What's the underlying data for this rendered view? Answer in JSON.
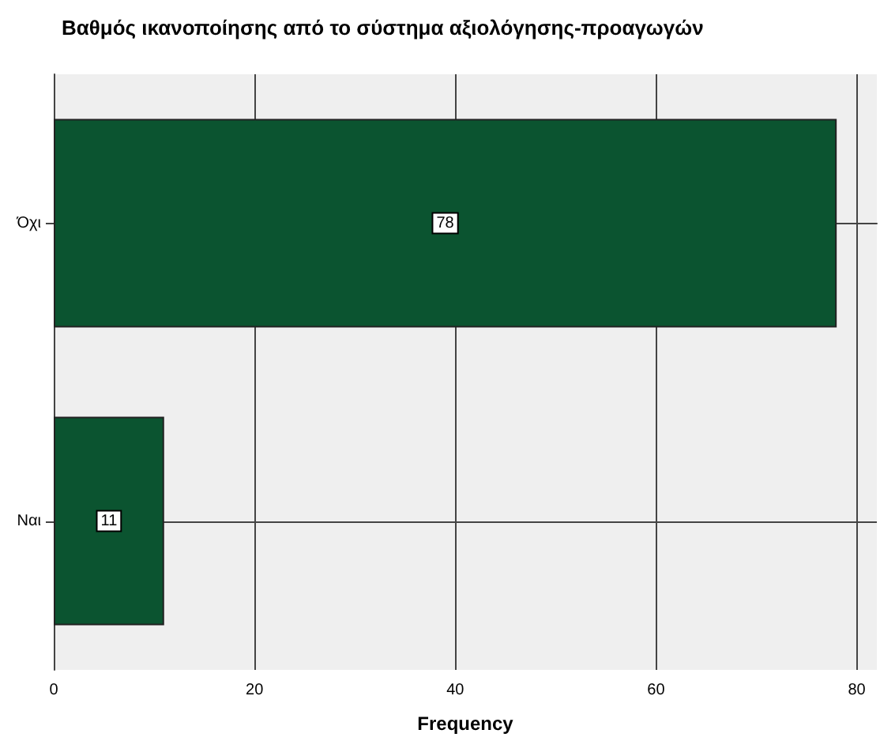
{
  "chart_data": {
    "type": "bar",
    "orientation": "horizontal",
    "title": "Βαθμός ικανοποίησης από το σύστημα αξιολόγησης-προαγωγών",
    "xlabel": "Frequency",
    "categories": [
      "Όχι",
      "Ναι"
    ],
    "values": [
      78,
      11
    ],
    "color": "#0b5430",
    "xlim": [
      0,
      82
    ],
    "xticks": [
      0,
      20,
      40,
      60,
      80
    ],
    "grid": true,
    "data_labels": true
  }
}
